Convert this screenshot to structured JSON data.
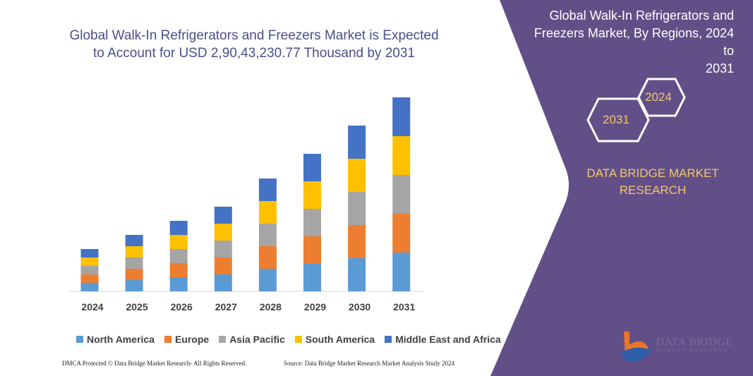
{
  "chart_data": {
    "type": "bar",
    "stacked": true,
    "title": "Global Walk-In Refrigerators and Freezers Market is Expected to Account for USD 2,90,43,230.77 Thousand by 2031",
    "categories": [
      "2024",
      "2025",
      "2026",
      "2027",
      "2028",
      "2029",
      "2030",
      "2031"
    ],
    "series": [
      {
        "name": "North America",
        "color": "#5B9BD5",
        "values": [
          12,
          16,
          20,
          24,
          32,
          39,
          47,
          55
        ]
      },
      {
        "name": "Europe",
        "color": "#ED7D31",
        "values": [
          12,
          16,
          20,
          24,
          32,
          39,
          47,
          55
        ]
      },
      {
        "name": "Asia Pacific",
        "color": "#A5A5A5",
        "values": [
          12,
          16,
          20,
          24,
          32,
          39,
          47,
          55
        ]
      },
      {
        "name": "South America",
        "color": "#FFC000",
        "values": [
          12,
          16,
          20,
          24,
          32,
          39,
          47,
          55
        ]
      },
      {
        "name": "Middle East and Africa",
        "color": "#4472C4",
        "values": [
          12,
          16,
          20,
          24,
          32,
          39,
          47,
          55
        ]
      }
    ],
    "ylim": [
      0,
      276
    ],
    "y_axis_shown": false,
    "grid": false,
    "legend_position": "bottom"
  },
  "title_line1": "Global Walk-In Refrigerators and Freezers Market is Expected",
  "title_line2": "to Account for USD 2,90,43,230.77 Thousand by 2031",
  "panel": {
    "title_line1": "Global Walk-In Refrigerators and",
    "title_line2": "Freezers Market, By Regions, 2024 to",
    "title_line3": "2031",
    "hex_start": "2024",
    "hex_end": "2031",
    "brand_line1": "DATA BRIDGE MARKET",
    "brand_line2": "RESEARCH",
    "color": "#634F87",
    "accent": "#F2C76B"
  },
  "logo": {
    "line1": "DATA BRIDGE",
    "line2": "MARKET RESEARCH"
  },
  "footer": {
    "left": "DMCA Protected © Data Bridge Market Research- All Rights Reserved.",
    "right": "Source: Data Bridge Market Research Market Analysis Study 2024"
  }
}
